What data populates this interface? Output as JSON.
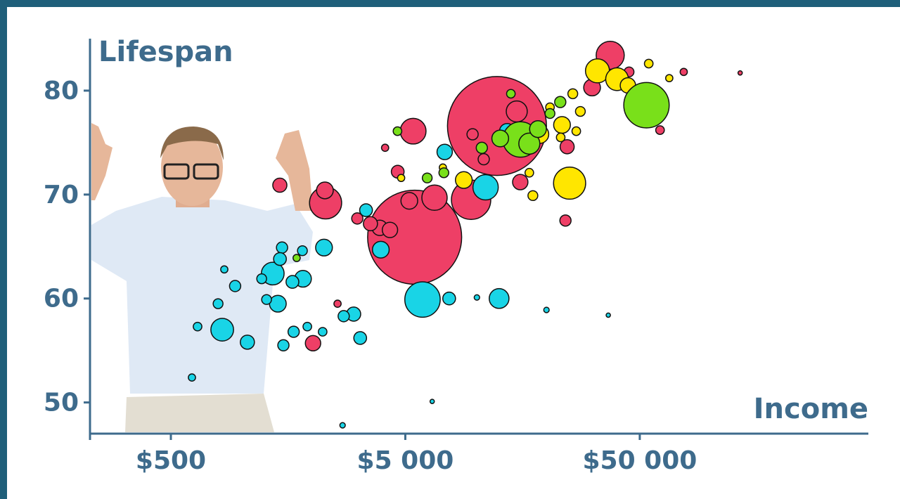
{
  "chart_data": {
    "type": "bubble",
    "y_label": "Lifespan",
    "x_label": "Income",
    "log_x": true,
    "xlim": [
      226,
      472000
    ],
    "xticks": [
      {
        "value": 500,
        "label": "$500"
      },
      {
        "value": 5000,
        "label": "$5 000"
      },
      {
        "value": 50000,
        "label": "$50 000"
      }
    ],
    "ylim": [
      47,
      85
    ],
    "yticks": [
      50,
      60,
      70,
      80
    ],
    "series": [
      {
        "color": "#ee3f66",
        "x": [
          5480,
          12300,
          5400,
          1458,
          2285,
          2270,
          3890,
          4300,
          5200,
          6660,
          9540,
          14940,
          15460,
          37400,
          31300,
          53500,
          24500,
          24100,
          2020,
          3120,
          4640,
          9680,
          10800,
          2570,
          61000,
          77000,
          134000,
          45000,
          4100,
          3550
        ],
        "values": [
          65.9,
          76.6,
          76.1,
          70.9,
          69.2,
          70.4,
          66.8,
          66.6,
          69.4,
          69.7,
          69.5,
          78.0,
          71.2,
          83.4,
          80.3,
          77.7,
          74.6,
          67.5,
          55.7,
          67.7,
          72.2,
          75.8,
          73.4,
          59.5,
          76.2,
          81.8,
          81.7,
          81.8,
          74.5,
          67.2
        ],
        "sizes": [
          1200,
          1330,
          90,
          27,
          140,
          38,
          32,
          32,
          38,
          87,
          210,
          60,
          32,
          107,
          38,
          32,
          27,
          17,
          32,
          17,
          22,
          17,
          17,
          7,
          10,
          7,
          2.5,
          13,
          7,
          27
        ]
      },
      {
        "color": "#19d4e6",
        "x": [
          5920,
          12560,
          7690,
          11000,
          7360,
          13600,
          3930,
          3400,
          2250,
          3010,
          2730,
          3210,
          2220,
          1910,
          1830,
          1650,
          1430,
          1360,
          1490,
          1460,
          1820,
          1280,
          1220,
          828,
          795,
          940,
          845,
          1060,
          1510,
          1670,
          650,
          615,
          6510,
          2700,
          36700,
          20000,
          10100
        ],
        "values": [
          59.9,
          60.0,
          60.0,
          70.7,
          74.1,
          76.1,
          64.7,
          68.5,
          64.9,
          58.5,
          58.3,
          56.2,
          56.8,
          57.3,
          61.9,
          61.6,
          59.5,
          62.4,
          64.9,
          63.8,
          64.6,
          59.9,
          61.9,
          57.0,
          59.5,
          61.2,
          62.8,
          55.8,
          55.5,
          56.8,
          57.3,
          52.4,
          50.1,
          47.8,
          58.4,
          58.9,
          60.1
        ],
        "sizes": [
          170,
          53,
          22,
          87,
          32,
          32,
          38,
          22,
          38,
          27,
          17,
          22,
          10,
          10,
          38,
          22,
          38,
          70,
          17,
          22,
          13,
          13,
          13,
          70,
          13,
          17,
          7,
          27,
          17,
          17,
          10,
          7,
          2.5,
          4,
          2.5,
          4,
          4
        ]
      },
      {
        "color": "#ffe600",
        "x": [
          25100,
          33000,
          40000,
          44500,
          23300,
          18700,
          8880,
          17500,
          16900,
          27900,
          25900,
          20700,
          54600,
          66800,
          23000,
          26800,
          4800,
          7230
        ],
        "values": [
          71.1,
          81.9,
          81.1,
          80.5,
          76.7,
          75.8,
          71.4,
          69.9,
          72.1,
          78.0,
          79.7,
          78.4,
          82.6,
          81.2,
          75.5,
          76.1,
          71.6,
          72.6
        ],
        "sizes": [
          140,
          78,
          70,
          32,
          38,
          45,
          38,
          13,
          10,
          13,
          13,
          10,
          10,
          7,
          10,
          10,
          7,
          7
        ]
      },
      {
        "color": "#79e01a",
        "x": [
          53400,
          15500,
          16900,
          18400,
          12700,
          22900,
          20700,
          14100,
          10600,
          6200,
          7300,
          4630,
          1720
        ],
        "values": [
          78.6,
          75.3,
          74.9,
          76.3,
          75.4,
          78.9,
          77.8,
          79.7,
          74.5,
          71.6,
          72.1,
          76.1,
          63.9
        ],
        "sizes": [
          280,
          170,
          60,
          38,
          38,
          17,
          13,
          10,
          17,
          13,
          13,
          10,
          7
        ]
      }
    ]
  }
}
